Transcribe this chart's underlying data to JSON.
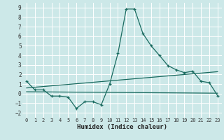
{
  "xlabel": "Humidex (Indice chaleur)",
  "bg_color": "#cce8e8",
  "grid_color": "#ffffff",
  "line_color": "#1a6b60",
  "xlim": [
    -0.5,
    23.5
  ],
  "ylim": [
    -2.5,
    9.5
  ],
  "xticks": [
    0,
    1,
    2,
    3,
    4,
    5,
    6,
    7,
    8,
    9,
    10,
    11,
    12,
    13,
    14,
    15,
    16,
    17,
    18,
    19,
    20,
    21,
    22,
    23
  ],
  "yticks": [
    -2,
    -1,
    0,
    1,
    2,
    3,
    4,
    5,
    6,
    7,
    8,
    9
  ],
  "main_x": [
    0,
    1,
    2,
    3,
    4,
    5,
    6,
    7,
    8,
    9,
    10,
    11,
    12,
    13,
    14,
    15,
    16,
    17,
    18,
    19,
    20,
    21,
    22,
    23
  ],
  "main_y": [
    1.3,
    0.4,
    0.4,
    -0.25,
    -0.25,
    -0.35,
    -1.55,
    -0.85,
    -0.85,
    -1.15,
    1.0,
    4.2,
    8.85,
    8.85,
    6.3,
    5.0,
    4.0,
    2.95,
    2.5,
    2.2,
    2.35,
    1.3,
    1.15,
    -0.2
  ],
  "line1_x": [
    0,
    23
  ],
  "line1_y": [
    0.6,
    2.3
  ],
  "line2_x": [
    0,
    23
  ],
  "line2_y": [
    0.2,
    0.05
  ]
}
